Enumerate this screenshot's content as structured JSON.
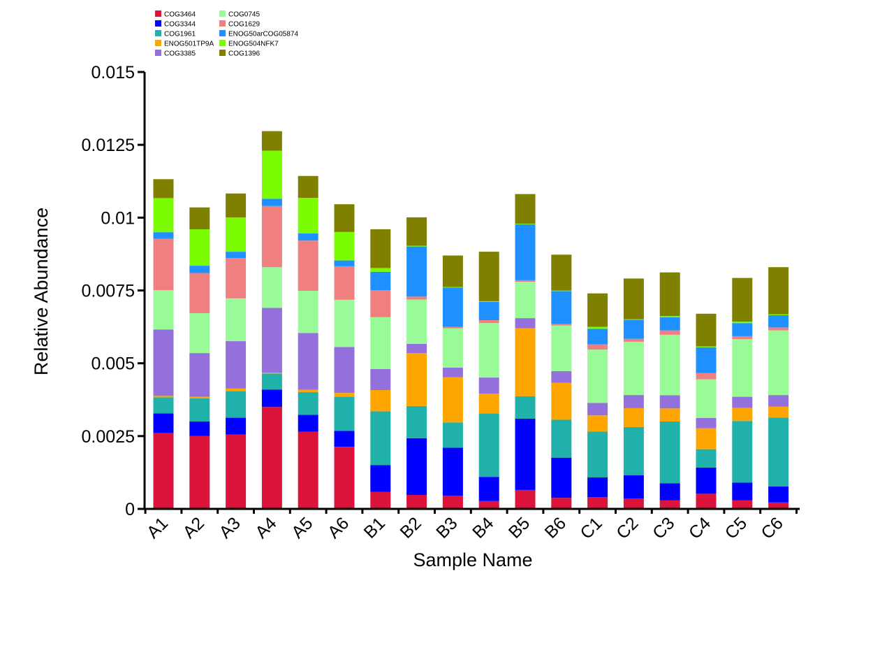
{
  "chart_data": {
    "type": "bar",
    "stacked": true,
    "title": "",
    "xlabel": "Sample Name",
    "ylabel": "Relative Abundance",
    "ylim": [
      0,
      0.015
    ],
    "yticks": [
      0,
      0.0025,
      0.005,
      0.0075,
      0.01,
      0.0125,
      0.015
    ],
    "ytick_labels": [
      "0",
      "0.0025",
      "0.005",
      "0.0075",
      "0.01",
      "0.0125",
      "0.015"
    ],
    "grid": false,
    "legend_position": "top-left",
    "categories": [
      "A1",
      "A2",
      "A3",
      "A4",
      "A5",
      "A6",
      "B1",
      "B2",
      "B3",
      "B4",
      "B5",
      "B6",
      "C1",
      "C2",
      "C3",
      "C4",
      "C5",
      "C6"
    ],
    "series": [
      {
        "name": "COG3464",
        "color": "#dc143c",
        "values": [
          0.0026,
          0.0025,
          0.00255,
          0.0035,
          0.00265,
          0.00213,
          0.00058,
          0.00048,
          0.00045,
          0.00027,
          0.00065,
          0.00038,
          0.0004,
          0.00036,
          0.0003,
          0.00052,
          0.0003,
          0.00022
        ]
      },
      {
        "name": "COG3344",
        "color": "#0000ff",
        "values": [
          0.00068,
          0.0005,
          0.00058,
          0.0006,
          0.00058,
          0.00055,
          0.00092,
          0.00195,
          0.00165,
          0.00083,
          0.00245,
          0.00138,
          0.00068,
          0.0008,
          0.00058,
          0.0009,
          0.0006,
          0.00055
        ]
      },
      {
        "name": "COG1961",
        "color": "#20b2aa",
        "values": [
          0.00055,
          0.0008,
          0.00092,
          0.00055,
          0.00078,
          0.00117,
          0.00185,
          0.0011,
          0.00087,
          0.00218,
          0.00077,
          0.0013,
          0.00158,
          0.00165,
          0.00212,
          0.00063,
          0.00212,
          0.00237
        ]
      },
      {
        "name": "ENOG501TP9A",
        "color": "#ffa500",
        "values": [
          5e-05,
          5e-05,
          8e-05,
          3e-05,
          8e-05,
          0.00013,
          0.00073,
          0.00182,
          0.00155,
          0.00068,
          0.00233,
          0.00127,
          0.00055,
          0.00065,
          0.00045,
          0.00072,
          0.00045,
          0.00037
        ]
      },
      {
        "name": "COG3385",
        "color": "#9370db",
        "values": [
          0.00228,
          0.0015,
          0.00163,
          0.00222,
          0.00195,
          0.00158,
          0.00072,
          0.00032,
          0.00033,
          0.00055,
          0.00035,
          0.0004,
          0.00043,
          0.00045,
          0.00045,
          0.00035,
          0.00038,
          0.0004
        ]
      },
      {
        "name": "COG0745",
        "color": "#98fb98",
        "values": [
          0.00135,
          0.00137,
          0.00147,
          0.0014,
          0.00145,
          0.00162,
          0.00178,
          0.00152,
          0.00135,
          0.00187,
          0.00125,
          0.00157,
          0.00183,
          0.00183,
          0.00208,
          0.00133,
          0.00198,
          0.00222
        ]
      },
      {
        "name": "COG1629",
        "color": "#f08080",
        "values": [
          0.00177,
          0.00138,
          0.00138,
          0.0021,
          0.00172,
          0.00115,
          0.00093,
          0.0001,
          5e-05,
          0.0001,
          5e-05,
          5e-05,
          0.00018,
          0.0001,
          0.00015,
          0.00022,
          0.0001,
          0.0001
        ]
      },
      {
        "name": "ENOG50arCOG05874",
        "color": "#1e90ff",
        "values": [
          0.00022,
          0.00025,
          0.00022,
          0.00025,
          0.00025,
          0.0002,
          0.00063,
          0.00172,
          0.00135,
          0.00063,
          0.00192,
          0.00113,
          0.00053,
          0.00065,
          0.00045,
          0.00088,
          0.00045,
          0.00042
        ]
      },
      {
        "name": "ENOG504NFK7",
        "color": "#7cfc00",
        "values": [
          0.00117,
          0.00125,
          0.00118,
          0.00165,
          0.00122,
          0.00098,
          0.00013,
          2e-05,
          2e-05,
          2e-05,
          2e-05,
          2e-05,
          7e-05,
          2e-05,
          4e-05,
          3e-05,
          5e-05,
          3e-05
        ]
      },
      {
        "name": "COG1396",
        "color": "#808000",
        "values": [
          0.00065,
          0.00075,
          0.00082,
          0.00067,
          0.00075,
          0.00095,
          0.00133,
          0.00098,
          0.00108,
          0.0017,
          0.00102,
          0.00123,
          0.00115,
          0.0014,
          0.0015,
          0.00112,
          0.0015,
          0.00162
        ]
      }
    ]
  }
}
